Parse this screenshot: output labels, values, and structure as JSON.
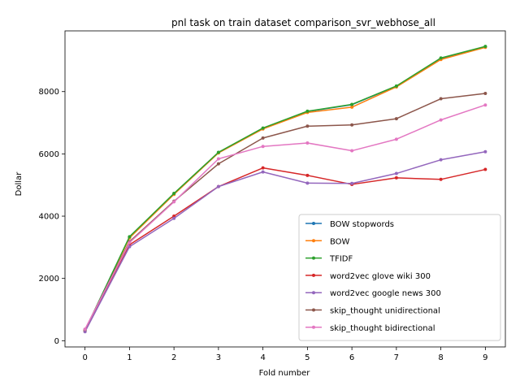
{
  "chart_data": {
    "type": "line",
    "title": "pnl task on train dataset comparison_svr_webhose_all",
    "xlabel": "Fold number",
    "ylabel": "Dollar",
    "x": [
      0,
      1,
      2,
      3,
      4,
      5,
      6,
      7,
      8,
      9
    ],
    "xlim": [
      -0.45,
      9.45
    ],
    "ylim": [
      -200,
      9950
    ],
    "xticks": [
      0,
      1,
      2,
      3,
      4,
      5,
      6,
      7,
      8,
      9
    ],
    "yticks": [
      0,
      2000,
      4000,
      6000,
      8000
    ],
    "grid": false,
    "legend_position": "lower-right",
    "series": [
      {
        "name": "BOW stopwords",
        "color": "#1f77b4",
        "values": [
          330,
          3320,
          4710,
          6040,
          6810,
          7360,
          7580,
          8170,
          9060,
          9440
        ]
      },
      {
        "name": "BOW",
        "color": "#ff7f0e",
        "values": [
          330,
          3300,
          4700,
          6030,
          6800,
          7330,
          7500,
          8150,
          9030,
          9420
        ]
      },
      {
        "name": "TFIDF",
        "color": "#2ca02c",
        "values": [
          330,
          3340,
          4730,
          6050,
          6830,
          7370,
          7590,
          8180,
          9080,
          9450
        ]
      },
      {
        "name": "word2vec glove wiki 300",
        "color": "#d62728",
        "values": [
          300,
          3080,
          4000,
          4950,
          5550,
          5310,
          5020,
          5230,
          5180,
          5500
        ]
      },
      {
        "name": "word2vec google news 300",
        "color": "#9467bd",
        "values": [
          290,
          3020,
          3930,
          4950,
          5420,
          5060,
          5050,
          5370,
          5810,
          6070
        ]
      },
      {
        "name": "skip_thought unidirectional",
        "color": "#8c564b",
        "values": [
          360,
          3180,
          4480,
          5680,
          6510,
          6890,
          6930,
          7130,
          7770,
          7940
        ]
      },
      {
        "name": "skip_thought bidirectional",
        "color": "#e377c2",
        "values": [
          370,
          3150,
          4460,
          5840,
          6240,
          6350,
          6100,
          6470,
          7090,
          7570
        ]
      }
    ]
  }
}
